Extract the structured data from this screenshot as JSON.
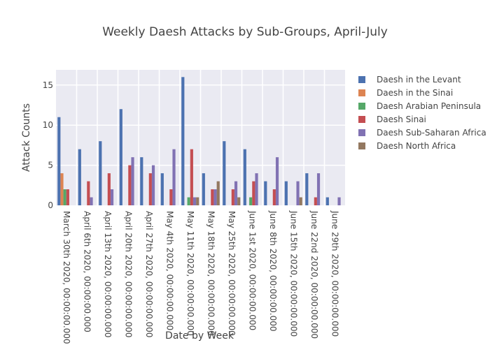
{
  "chart_data": {
    "type": "bar",
    "title": "Weekly Daesh Attacks by Sub-Groups, April-July",
    "xlabel": "Date by Week",
    "ylabel": "Attack Counts",
    "ylim": [
      0,
      16.9
    ],
    "yticks": [
      0,
      5,
      10,
      15
    ],
    "grid": true,
    "legend_placement": "right",
    "categories": [
      "March 30th 2020, 00:00:00.000",
      "April 6th 2020, 00:00:00.000",
      "April 13th 2020, 00:00:00.000",
      "April 20th 2020, 00:00:00.000",
      "April 27th 2020, 00:00:00.000",
      "May 4th 2020, 00:00:00.000",
      "May 11th 2020, 00:00:00.000",
      "May 18th 2020, 00:00:00.000",
      "May 25th 2020, 00:00:00.000",
      "June 1st 2020, 00:00:00.000",
      "June 8th 2020, 00:00:00.000",
      "June 15th 2020, 00:00:00.000",
      "June 22nd 2020, 00:00:00.000",
      "June 29th 2020, 00:00:00.000"
    ],
    "series": [
      {
        "name": "Daesh in the Levant",
        "color": "#4c72b0",
        "values": [
          11,
          7,
          8,
          12,
          6,
          4,
          16,
          4,
          8,
          7,
          3,
          3,
          4,
          1
        ]
      },
      {
        "name": "Daesh in the Sinai",
        "color": "#dd8452",
        "values": [
          4,
          0,
          0,
          0,
          0,
          0,
          0,
          0,
          0,
          0,
          0,
          0,
          0,
          0
        ]
      },
      {
        "name": "Daesh Arabian Peninsula",
        "color": "#55a868",
        "values": [
          2,
          0,
          0,
          0,
          0,
          0,
          1,
          0,
          0,
          1,
          0,
          0,
          0,
          0
        ]
      },
      {
        "name": "Daesh Sinai",
        "color": "#c44e52",
        "values": [
          2,
          3,
          4,
          5,
          4,
          2,
          7,
          2,
          2,
          3,
          2,
          0,
          1,
          0
        ]
      },
      {
        "name": "Daesh Sub-Saharan Africa",
        "color": "#8172b3",
        "values": [
          0,
          1,
          2,
          6,
          5,
          7,
          1,
          2,
          3,
          4,
          6,
          3,
          4,
          1
        ]
      },
      {
        "name": "Daesh North Africa",
        "color": "#937860",
        "values": [
          0,
          0,
          0,
          0,
          0,
          0,
          1,
          3,
          1,
          0,
          0,
          1,
          0,
          0
        ]
      }
    ]
  }
}
